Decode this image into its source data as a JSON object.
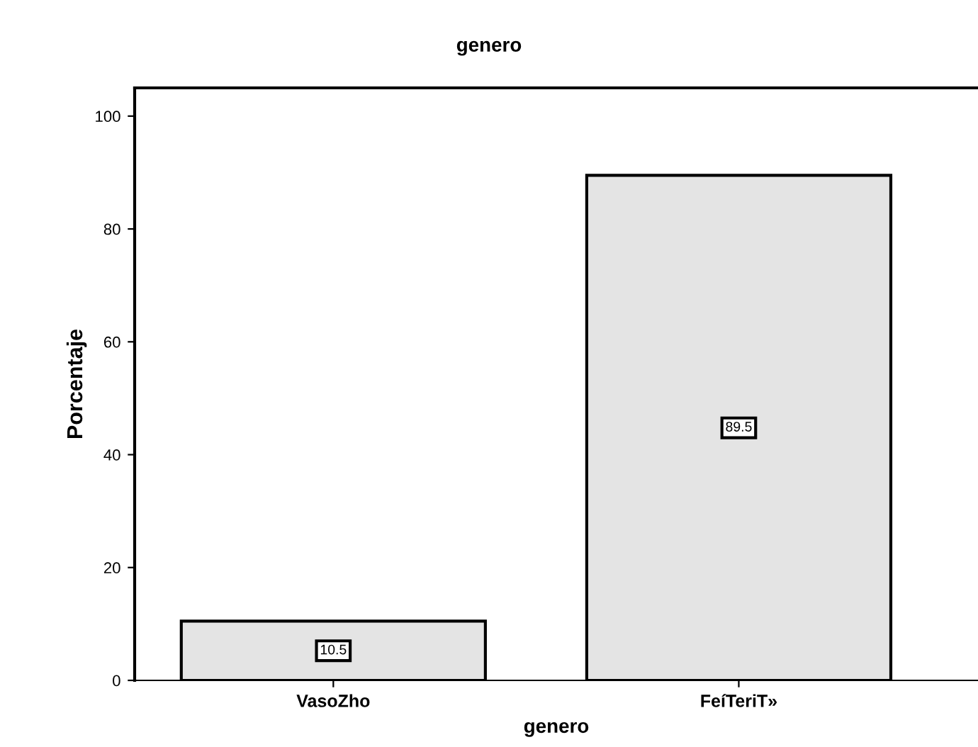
{
  "chart_data": {
    "type": "bar",
    "title": "genero",
    "xlabel": "genero",
    "ylabel": "Porcentaje",
    "categories": [
      "VasoZho",
      "FeíTeriT»"
    ],
    "series": [
      {
        "color": "#e4e4e4",
        "values": [
          10.5,
          89.5
        ]
      }
    ],
    "data_labels": true,
    "ylim": [
      0,
      105
    ],
    "yticks": [
      0,
      20,
      40,
      60,
      80,
      100
    ],
    "grid": false,
    "legend": false
  }
}
